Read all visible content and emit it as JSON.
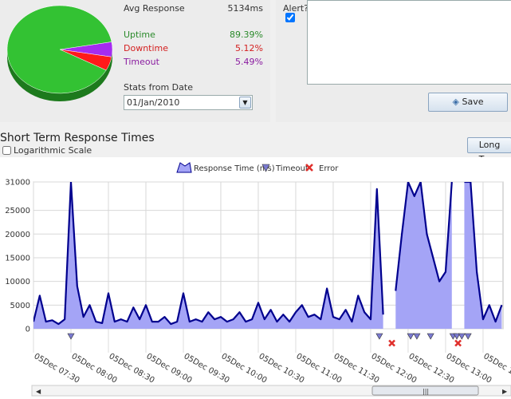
{
  "stats": {
    "avg_response_label": "Avg Response",
    "avg_response": "5134ms",
    "date_label": "Stats from Date",
    "date": "01/Jan/2010"
  },
  "alert": {
    "label": "Alert?",
    "checked": true,
    "save": "Save"
  },
  "section": {
    "title": "Short Term Response Times",
    "log_scale_label": "Logarithmic Scale",
    "log_scale": false,
    "long_term": "Long Term"
  },
  "chart_data": [
    {
      "type": "pie",
      "categories": [
        "Uptime",
        "Downtime",
        "Timeout"
      ],
      "values": [
        89.39,
        5.12,
        5.49
      ],
      "value_labels": [
        "89.39%",
        "5.12%",
        "5.49%"
      ],
      "colors": [
        "#33c233",
        "#ff1a1a",
        "#a52cf0"
      ]
    },
    {
      "type": "area",
      "x": [
        "05Dec 07:30",
        "05Dec 07:35",
        "05Dec 07:40",
        "05Dec 07:45",
        "05Dec 07:50",
        "05Dec 07:55",
        "05Dec 08:00",
        "05Dec 08:05",
        "05Dec 08:10",
        "05Dec 08:15",
        "05Dec 08:20",
        "05Dec 08:25",
        "05Dec 08:30",
        "05Dec 08:35",
        "05Dec 08:40",
        "05Dec 08:45",
        "05Dec 08:50",
        "05Dec 08:55",
        "05Dec 09:00",
        "05Dec 09:05",
        "05Dec 09:10",
        "05Dec 09:15",
        "05Dec 09:20",
        "05Dec 09:25",
        "05Dec 09:30",
        "05Dec 09:35",
        "05Dec 09:40",
        "05Dec 09:45",
        "05Dec 09:50",
        "05Dec 09:55",
        "05Dec 10:00",
        "05Dec 10:05",
        "05Dec 10:10",
        "05Dec 10:15",
        "05Dec 10:20",
        "05Dec 10:25",
        "05Dec 10:30",
        "05Dec 10:35",
        "05Dec 10:40",
        "05Dec 10:45",
        "05Dec 10:50",
        "05Dec 10:55",
        "05Dec 11:00",
        "05Dec 11:05",
        "05Dec 11:10",
        "05Dec 11:15",
        "05Dec 11:20",
        "05Dec 11:25",
        "05Dec 11:30",
        "05Dec 11:35",
        "05Dec 11:40",
        "05Dec 11:45",
        "05Dec 11:50",
        "05Dec 11:55",
        "05Dec 12:00",
        "05Dec 12:05",
        "05Dec 12:10",
        "05Dec 12:15",
        "05Dec 12:20",
        "05Dec 12:25",
        "05Dec 12:30",
        "05Dec 12:35",
        "05Dec 12:40",
        "05Dec 12:45",
        "05Dec 12:50",
        "05Dec 12:55",
        "05Dec 13:00",
        "05Dec 13:05",
        "05Dec 13:10",
        "05Dec 13:15",
        "05Dec 13:20",
        "05Dec 13:25",
        "05Dec 13:30",
        "05Dec 13:35",
        "05Dec 13:40",
        "05Dec 13:45"
      ],
      "series": [
        {
          "name": "Response Time (ms)",
          "color": "#a4a4f6",
          "line_color": "#00008e",
          "values": [
            1500,
            7000,
            1500,
            1800,
            1000,
            2000,
            31000,
            9000,
            2500,
            5000,
            1500,
            1200,
            7500,
            1500,
            2000,
            1500,
            4500,
            2000,
            5000,
            1500,
            1500,
            2500,
            1000,
            1500,
            7500,
            1500,
            2000,
            1500,
            3500,
            2000,
            2500,
            1500,
            2000,
            3500,
            1500,
            2000,
            5500,
            2000,
            4000,
            1500,
            3000,
            1500,
            3500,
            5000,
            2500,
            3000,
            2000,
            8500,
            2500,
            2000,
            4000,
            1500,
            7000,
            3500,
            2000,
            29500,
            3000,
            null,
            8000,
            20000,
            31000,
            28000,
            31000,
            20000,
            15000,
            10000,
            12000,
            31000,
            null,
            31000,
            31000,
            12000,
            2000,
            5000,
            1500,
            5000
          ]
        }
      ],
      "markers": [
        {
          "name": "Timeout",
          "color": "#7a7ad0",
          "x": [
            "05Dec 08:00",
            "05Dec 12:07",
            "05Dec 12:32",
            "05Dec 12:37",
            "05Dec 12:48",
            "05Dec 13:06",
            "05Dec 13:09",
            "05Dec 13:13",
            "05Dec 13:18"
          ]
        },
        {
          "name": "Error",
          "color": "#e0302c",
          "x": [
            "05Dec 12:17",
            "05Dec 13:10"
          ]
        }
      ],
      "xlim": [
        "05Dec 07:30",
        "05Dec 13:46"
      ],
      "xticks": [
        "05Dec 07:30",
        "05Dec 08:00",
        "05Dec 08:30",
        "05Dec 09:00",
        "05Dec 09:30",
        "05Dec 10:00",
        "05Dec 10:30",
        "05Dec 11:00",
        "05Dec 11:30",
        "05Dec 12:00",
        "05Dec 12:30",
        "05Dec 13:00",
        "05Dec 13:30"
      ],
      "ylim": [
        0,
        31000
      ],
      "yticks": [
        0,
        5000,
        10000,
        15000,
        20000,
        25000,
        31000
      ],
      "grid": true
    }
  ]
}
